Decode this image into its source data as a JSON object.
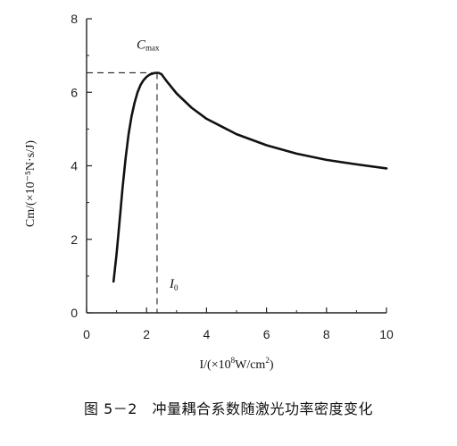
{
  "chart_data": {
    "type": "line",
    "xlim": [
      0,
      10
    ],
    "ylim": [
      0,
      8
    ],
    "x_ticks": [
      0,
      2,
      4,
      6,
      8,
      10
    ],
    "y_ticks": [
      0,
      2,
      4,
      6,
      8
    ],
    "xlabel": {
      "main": "I/(×10",
      "exp": "8",
      "rest": "W/cm",
      "exp2": "2",
      "end": ")"
    },
    "ylabel": "Cm/(×10⁻⁵N·s/J)",
    "series": [
      {
        "x": [
          0.9,
          1.0,
          1.1,
          1.2,
          1.3,
          1.4,
          1.5,
          1.6,
          1.7,
          1.8,
          1.9,
          2.0,
          2.1,
          2.2,
          2.3,
          2.4,
          2.5,
          2.7,
          3.0,
          3.5,
          4.0,
          5.0,
          6.0,
          7.0,
          8.0,
          9.0,
          10.0
        ],
        "y": [
          0.85,
          1.6,
          2.5,
          3.4,
          4.2,
          4.85,
          5.35,
          5.72,
          6.0,
          6.2,
          6.33,
          6.42,
          6.48,
          6.51,
          6.53,
          6.53,
          6.49,
          6.27,
          5.97,
          5.58,
          5.28,
          4.86,
          4.56,
          4.33,
          4.16,
          4.04,
          3.93
        ]
      }
    ],
    "annotations": {
      "cmax_label": "C",
      "cmax_sub": "max",
      "cmax": {
        "x": 2.35,
        "y": 6.53
      },
      "i0_label": "I",
      "i0_sub": "0"
    },
    "grid": false
  },
  "caption": "图 5－2　冲量耦合系数随激光功率密度变化"
}
